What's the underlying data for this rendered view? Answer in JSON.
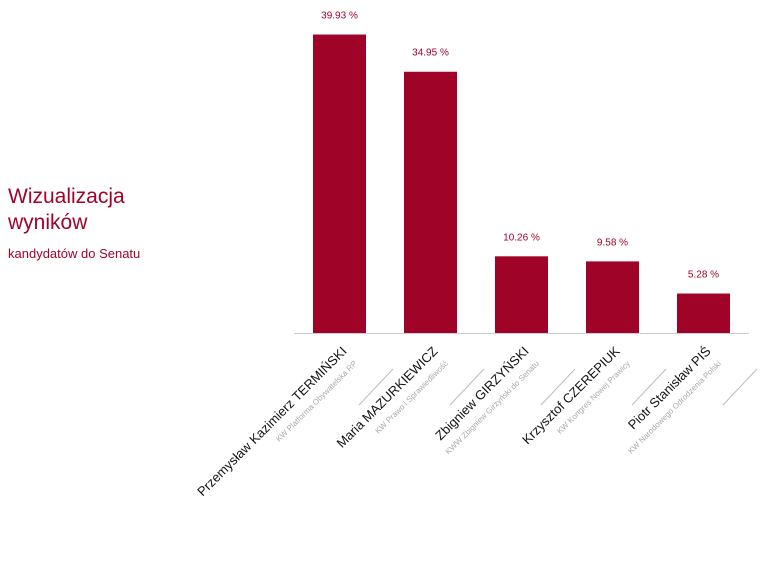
{
  "heading": {
    "title_line1": "Wizualizacja",
    "title_line2": "wyników",
    "subtitle": "kandydatów do Senatu"
  },
  "colors": {
    "bar": "#a00328",
    "value_label": "#a00328",
    "name": "#111111",
    "committee": "#aaaaaa",
    "axis": "#cccccc"
  },
  "chart_data": {
    "type": "bar",
    "categories": [
      "Przemysław Kazimierz TERMIŃSKI",
      "Maria MAZURKIEWICZ",
      "Zbigniew GIRZYŃSKI",
      "Krzysztof CZEREPIUK",
      "Piotr Stanisław PIŚ"
    ],
    "committees": [
      "KW Platforma Obywatelska RP",
      "KW Prawo i Sprawiedliwość",
      "KWW Zbigniew Girzyński do Senatu",
      "KW Kongres Nowej Prawicy",
      "KW Narodowego Odrodzenia Polski"
    ],
    "values": [
      39.93,
      34.95,
      10.26,
      9.58,
      5.28
    ],
    "value_labels": [
      "39.93 %",
      "34.95 %",
      "10.26 %",
      "9.58 %",
      "5.28 %"
    ],
    "ylim": [
      0,
      40
    ],
    "grid": false,
    "legend": "none"
  }
}
